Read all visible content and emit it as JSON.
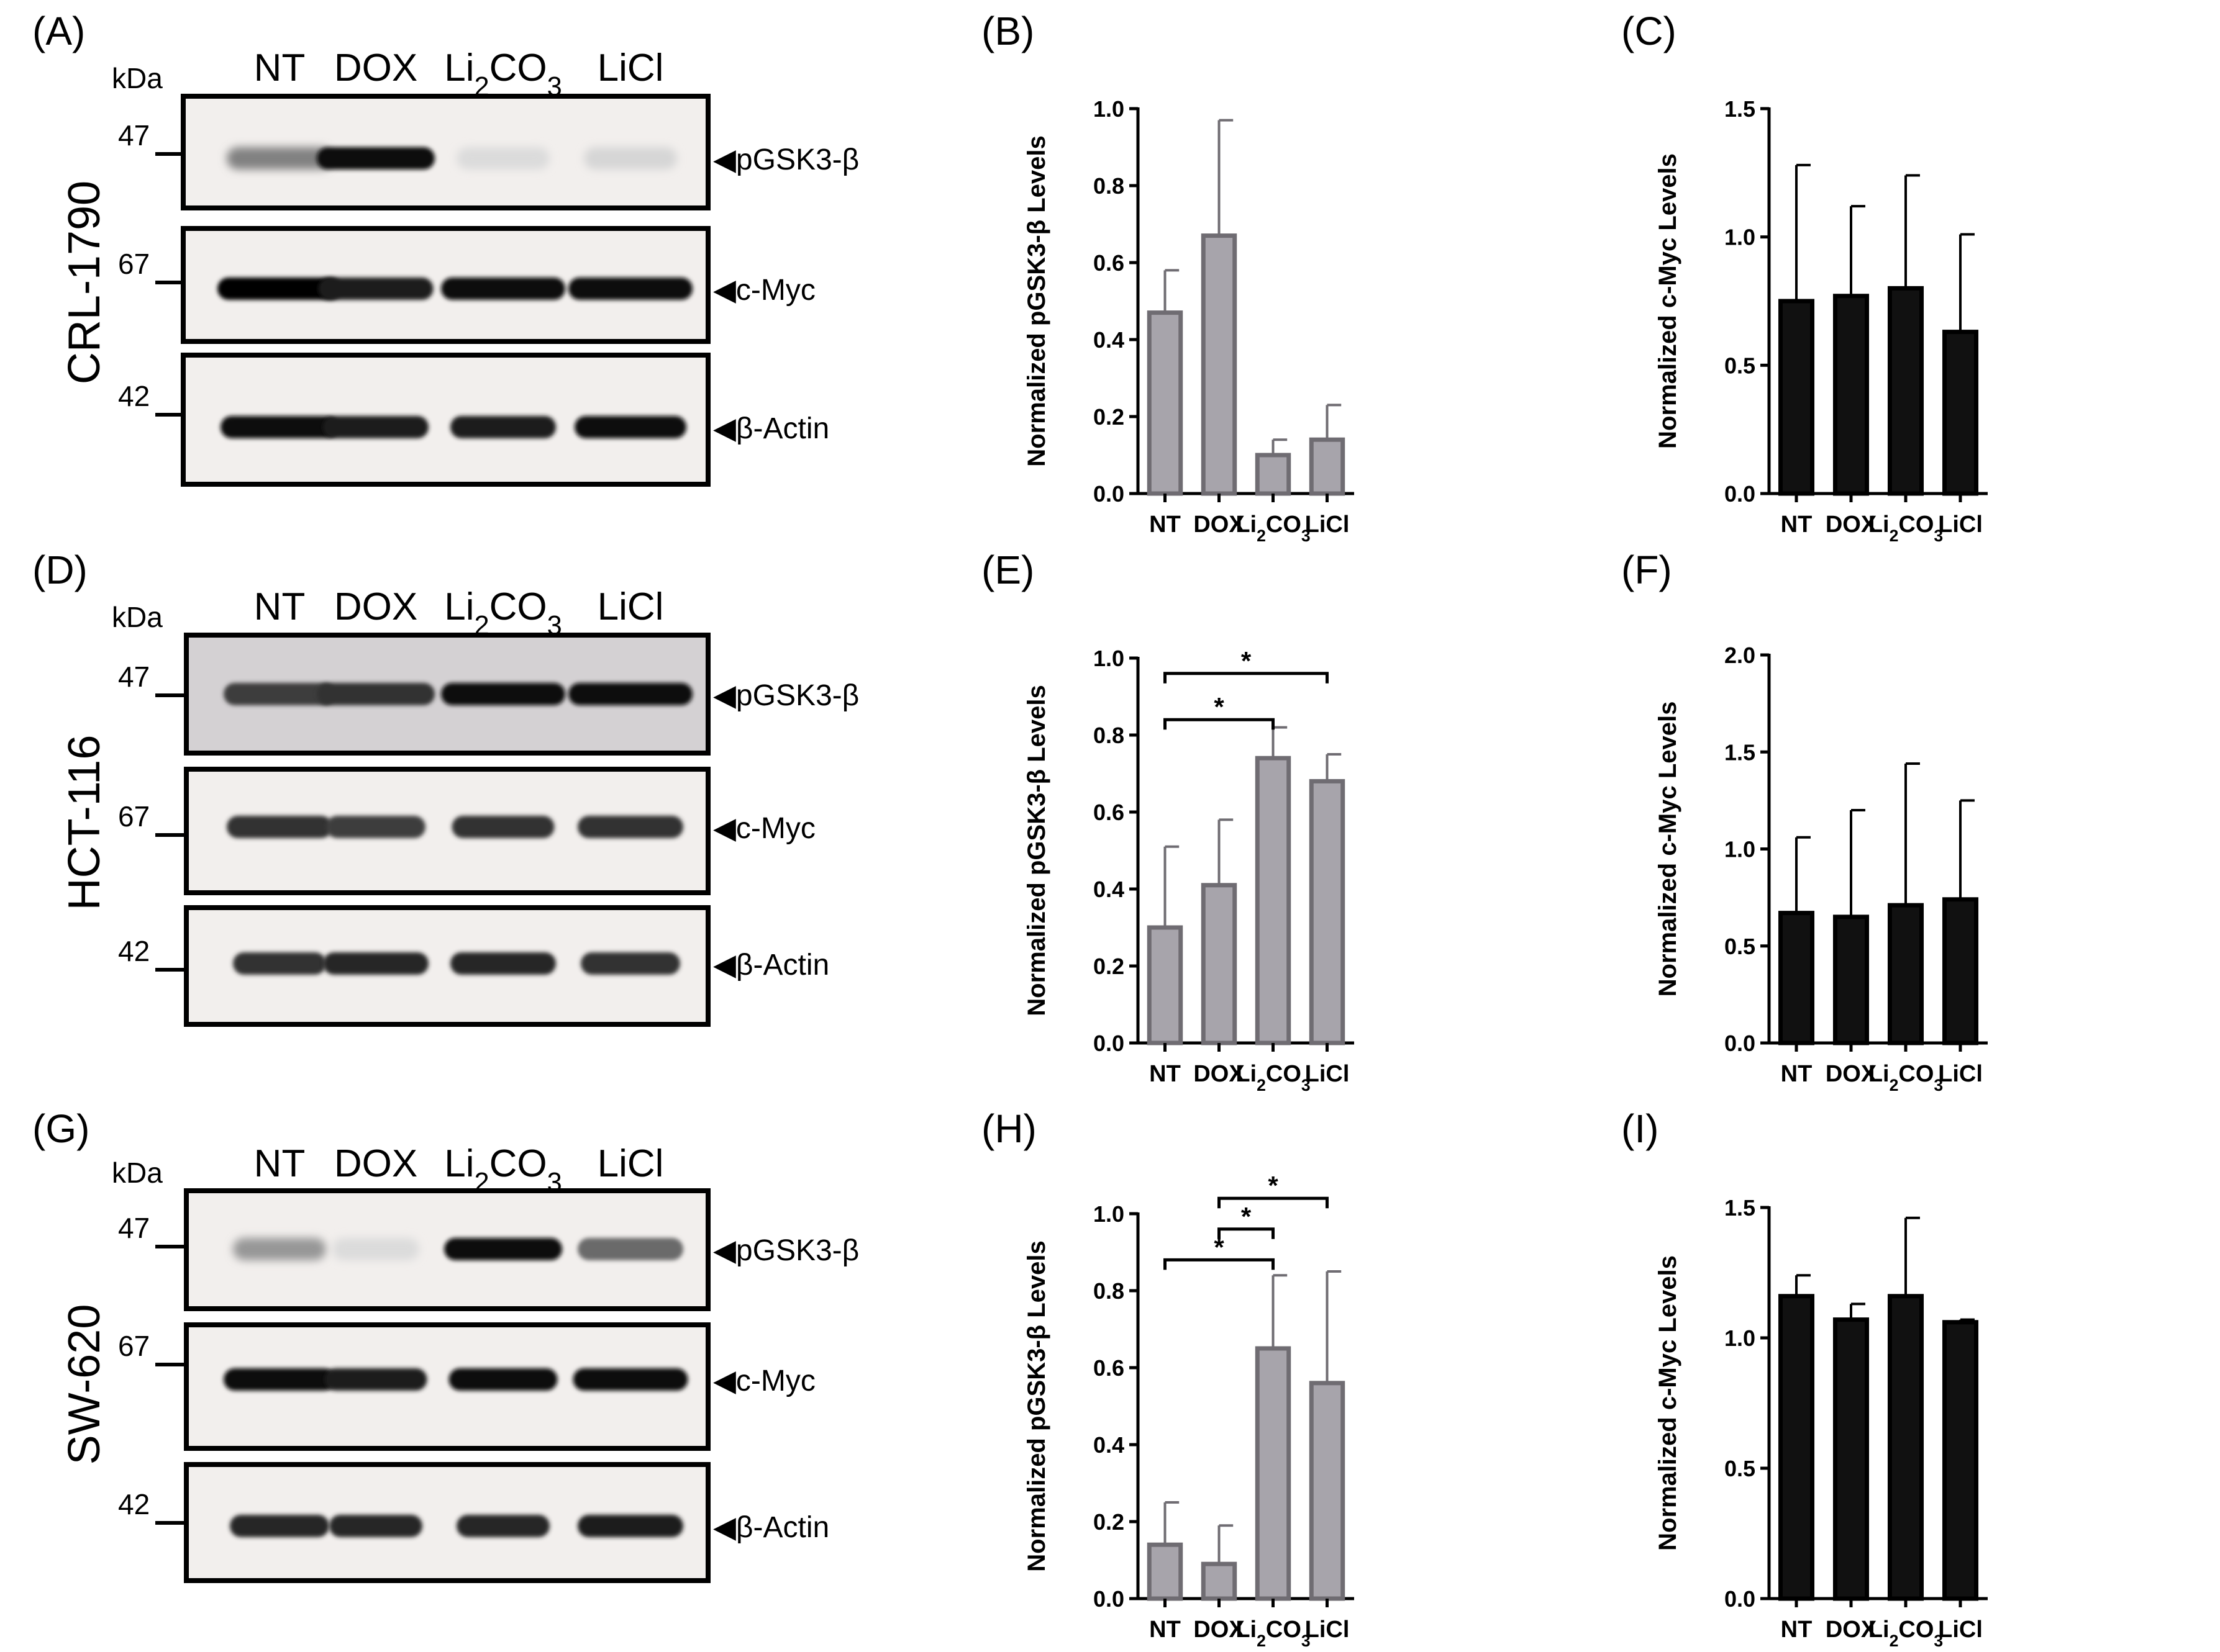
{
  "western_blots": [
    {
      "panel_label": "(A)",
      "cell_line": "CRL-1790",
      "kda_label": "kDa",
      "lanes": [
        "NT",
        "DOX",
        "Li2CO3",
        "LiCl"
      ],
      "markers": [
        "47",
        "67",
        "42"
      ],
      "bands": [
        "◀pGSK3-β",
        "◀c-Myc",
        "◀β-Actin"
      ]
    },
    {
      "panel_label": "(D)",
      "cell_line": "HCT-116",
      "kda_label": "kDa",
      "lanes": [
        "NT",
        "DOX",
        "Li2CO3",
        "LiCl"
      ],
      "markers": [
        "47",
        "67",
        "42"
      ],
      "bands": [
        "◀pGSK3-β",
        "◀c-Myc",
        "◀β-Actin"
      ]
    },
    {
      "panel_label": "(G)",
      "cell_line": "SW-620",
      "kda_label": "kDa",
      "lanes": [
        "NT",
        "DOX",
        "Li2CO3",
        "LiCl"
      ],
      "markers": [
        "47",
        "67",
        "42"
      ],
      "bands": [
        "◀pGSK3-β",
        "◀c-Myc",
        "◀β-Actin"
      ]
    }
  ],
  "chart_data": [
    {
      "panel_label": "(B)",
      "type": "bar",
      "color": "#a7a4ab",
      "edge": "#6f6c72",
      "categories": [
        "NT",
        "DOX",
        "Li2CO3",
        "LiCl"
      ],
      "values": [
        0.47,
        0.67,
        0.1,
        0.14
      ],
      "errors": [
        0.11,
        0.3,
        0.04,
        0.09
      ],
      "ylabel": "Normalized pGSK3-β Levels",
      "ylim": [
        0,
        1.0
      ],
      "yticks": [
        "0.0",
        "0.2",
        "0.4",
        "0.6",
        "0.8",
        "1.0"
      ],
      "significance": []
    },
    {
      "panel_label": "(C)",
      "type": "bar",
      "color": "#111111",
      "edge": "#000000",
      "categories": [
        "NT",
        "DOX",
        "Li2CO3",
        "LiCl"
      ],
      "values": [
        0.75,
        0.77,
        0.8,
        0.63
      ],
      "errors": [
        0.53,
        0.35,
        0.44,
        0.38
      ],
      "ylabel": "Normalized c-Myc Levels",
      "ylim": [
        0,
        1.5
      ],
      "yticks": [
        "0.0",
        "0.5",
        "1.0",
        "1.5"
      ],
      "significance": []
    },
    {
      "panel_label": "(E)",
      "type": "bar",
      "color": "#a7a4ab",
      "edge": "#6f6c72",
      "categories": [
        "NT",
        "DOX",
        "Li2CO3",
        "LiCl"
      ],
      "values": [
        0.3,
        0.41,
        0.74,
        0.68
      ],
      "errors": [
        0.21,
        0.17,
        0.08,
        0.07
      ],
      "ylabel": "Normalized pGSK3-β Levels",
      "ylim": [
        0,
        1.0
      ],
      "yticks": [
        "0.0",
        "0.2",
        "0.4",
        "0.6",
        "0.8",
        "1.0"
      ],
      "significance": [
        {
          "from": 0,
          "to": 2,
          "level": 0.84,
          "label": "*"
        },
        {
          "from": 0,
          "to": 3,
          "level": 0.96,
          "label": "*"
        }
      ]
    },
    {
      "panel_label": "(F)",
      "type": "bar",
      "color": "#111111",
      "edge": "#000000",
      "categories": [
        "NT",
        "DOX",
        "Li2CO3",
        "LiCl"
      ],
      "values": [
        0.67,
        0.65,
        0.71,
        0.74
      ],
      "errors": [
        0.39,
        0.55,
        0.73,
        0.51
      ],
      "ylabel": "Normalized c-Myc Levels",
      "ylim": [
        0,
        2.0
      ],
      "yticks": [
        "0.0",
        "0.5",
        "1.0",
        "1.5",
        "2.0"
      ],
      "significance": []
    },
    {
      "panel_label": "(H)",
      "type": "bar",
      "color": "#a7a4ab",
      "edge": "#6f6c72",
      "categories": [
        "NT",
        "DOX",
        "Li2CO3",
        "LiCl"
      ],
      "values": [
        0.14,
        0.09,
        0.65,
        0.56
      ],
      "errors": [
        0.11,
        0.1,
        0.19,
        0.29
      ],
      "ylabel": "Normalized pGSK3-β Levels",
      "ylim": [
        0,
        1.0
      ],
      "yticks": [
        "0.0",
        "0.2",
        "0.4",
        "0.6",
        "0.8",
        "1.0"
      ],
      "significance": [
        {
          "from": 0,
          "to": 2,
          "level": 0.88,
          "label": "*"
        },
        {
          "from": 1,
          "to": 2,
          "level": 0.96,
          "label": "*"
        },
        {
          "from": 1,
          "to": 3,
          "level": 1.04,
          "label": "*"
        }
      ]
    },
    {
      "panel_label": "(I)",
      "type": "bar",
      "color": "#111111",
      "edge": "#000000",
      "categories": [
        "NT",
        "DOX",
        "Li2CO3",
        "LiCl"
      ],
      "values": [
        1.16,
        1.07,
        1.16,
        1.06
      ],
      "errors": [
        0.08,
        0.06,
        0.3,
        0.01
      ],
      "ylabel": "Normalized c-Myc Levels",
      "ylim": [
        0,
        1.5
      ],
      "yticks": [
        "0.0",
        "0.5",
        "1.0",
        "1.5"
      ],
      "significance": []
    }
  ]
}
